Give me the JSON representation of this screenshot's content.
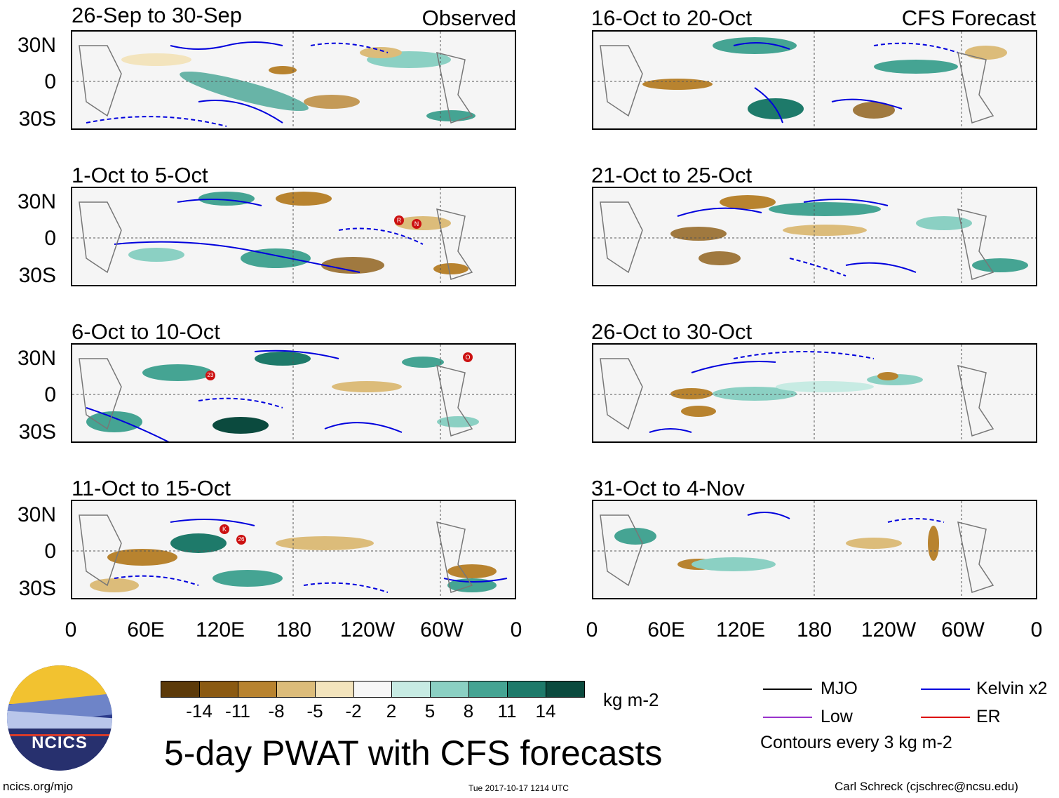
{
  "colors": {
    "mjo": "#000000",
    "kelvin": "#0000dd",
    "low": "#9933cc",
    "er": "#dd0000",
    "land": "#777777",
    "storm": "#cc1111"
  },
  "columns": {
    "left_title": "Observed",
    "right_title": "CFS Forecast"
  },
  "panels": {
    "left": [
      {
        "title": "26-Sep to 30-Sep",
        "storms": []
      },
      {
        "title": "1-Oct to 5-Oct",
        "storms": [
          "R",
          "N"
        ]
      },
      {
        "title": "6-Oct to 10-Oct",
        "storms": [
          "23",
          "O"
        ]
      },
      {
        "title": "11-Oct to 15-Oct",
        "storms": [
          "K",
          "26"
        ]
      }
    ],
    "right": [
      {
        "title": "16-Oct to 20-Oct"
      },
      {
        "title": "21-Oct to 25-Oct"
      },
      {
        "title": "26-Oct to 30-Oct"
      },
      {
        "title": "31-Oct to 4-Nov"
      }
    ]
  },
  "axes": {
    "lat_labels": [
      "30N",
      "0",
      "30S"
    ],
    "lon_labels": [
      "0",
      "60E",
      "120E",
      "180",
      "120W",
      "60W",
      "0"
    ]
  },
  "colorbar": {
    "colors": [
      "#5c3a0a",
      "#8b5a12",
      "#b8832f",
      "#dcbc7a",
      "#f3e4bd",
      "#f7f7f7",
      "#c7ebe3",
      "#8bd0c3",
      "#45a493",
      "#1e7a6a",
      "#0b4a3e"
    ],
    "ticks": [
      "-14",
      "-11",
      "-8",
      "-5",
      "-2",
      "2",
      "5",
      "8",
      "11",
      "14"
    ],
    "units": "kg m-2"
  },
  "legend": {
    "mjo": "MJO",
    "kelvin": "Kelvin x2",
    "low": "Low",
    "er": "ER",
    "contours": "Contours every 3 kg m-2"
  },
  "footer": {
    "title": "5-day PWAT with CFS forecasts",
    "logo_text": "NCICS",
    "url": "ncics.org/mjo",
    "timestamp": "Tue 2017-10-17 1214 UTC",
    "author": "Carl Schreck (cjschrec@ncsu.edu)"
  }
}
